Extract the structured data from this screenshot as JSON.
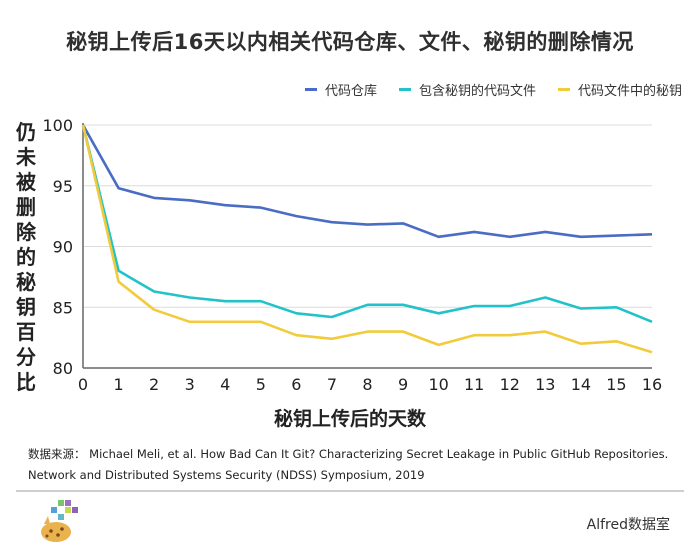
{
  "title": "秘钥上传后16天以内相关代码仓库、文件、秘钥的删除情况",
  "source_line1": "数据来源： Michael Meli, et al.  How Bad Can It Git? Characterizing Secret Leakage in Public GitHub Repositories.",
  "source_line2": "Network and Distributed Systems Security (NDSS) Symposium, 2019",
  "brand": "Alfred数据室",
  "chart_data": {
    "type": "line",
    "title": "秘钥上传后16天以内相关代码仓库、文件、秘钥的删除情况",
    "xlabel": "秘钥上传后的天数",
    "ylabel": "仍未被删除的秘钥百分比",
    "x": [
      0,
      1,
      2,
      3,
      4,
      5,
      6,
      7,
      8,
      9,
      10,
      11,
      12,
      13,
      14,
      15,
      16
    ],
    "xlim": [
      0,
      16
    ],
    "ylim": [
      80,
      100
    ],
    "yticks": [
      80,
      85,
      90,
      95,
      100
    ],
    "grid": "horizontal",
    "legend_position": "top-right",
    "series": [
      {
        "name": "代码仓库",
        "color": "#4a6cc4",
        "values": [
          100,
          94.8,
          94.0,
          93.8,
          93.4,
          93.2,
          92.5,
          92.0,
          91.8,
          91.9,
          90.8,
          91.2,
          90.8,
          91.2,
          90.8,
          90.9,
          91.0
        ]
      },
      {
        "name": "包含秘钥的代码文件",
        "color": "#23c2c9",
        "values": [
          100,
          88.0,
          86.3,
          85.8,
          85.5,
          85.5,
          84.5,
          84.2,
          85.2,
          85.2,
          84.5,
          85.1,
          85.1,
          85.8,
          84.9,
          85.0,
          83.8
        ]
      },
      {
        "name": "代码文件中的秘钥",
        "color": "#f2cb3c",
        "values": [
          100,
          87.1,
          84.8,
          83.8,
          83.8,
          83.8,
          82.7,
          82.4,
          83.0,
          83.0,
          81.9,
          82.7,
          82.7,
          83.0,
          82.0,
          82.2,
          81.3
        ]
      }
    ]
  }
}
